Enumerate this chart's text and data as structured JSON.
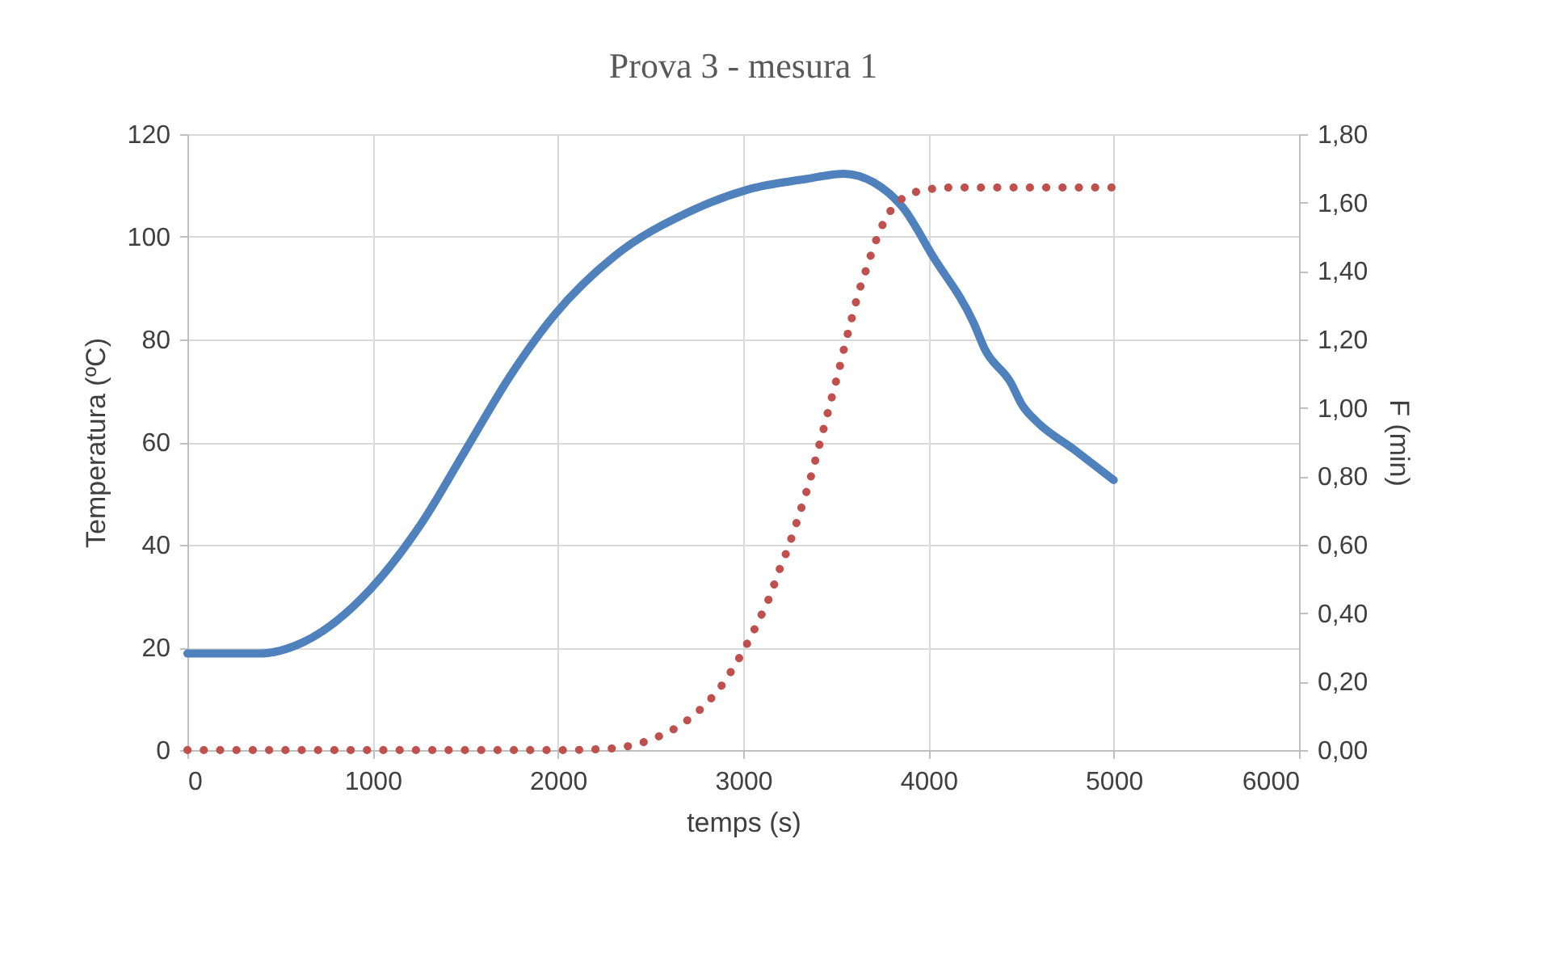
{
  "chart_data": {
    "type": "line",
    "title": "Prova 3 - mesura 1",
    "xlabel": "temps (s)",
    "ylabel": "Temperatura (ºC)",
    "y2label": "F (min)",
    "xlim": [
      0,
      6000
    ],
    "xticks": [
      0,
      1000,
      2000,
      3000,
      4000,
      5000,
      6000
    ],
    "ylim": [
      0,
      120
    ],
    "yticks": [
      0,
      20,
      40,
      60,
      80,
      100,
      120
    ],
    "y2lim": [
      0,
      1.8
    ],
    "y2ticks": [
      {
        "value": 0,
        "label": "0,00"
      },
      {
        "value": 0.2,
        "label": "0,20"
      },
      {
        "value": 0.4,
        "label": "0,40"
      },
      {
        "value": 0.6,
        "label": "0,60"
      },
      {
        "value": 0.8,
        "label": "0,80"
      },
      {
        "value": 1.0,
        "label": "1,00"
      },
      {
        "value": 1.2,
        "label": "1,20"
      },
      {
        "value": 1.4,
        "label": "1,40"
      },
      {
        "value": 1.6,
        "label": "1,60"
      },
      {
        "value": 1.8,
        "label": "1,80"
      }
    ],
    "grid": true,
    "legend": false,
    "series": [
      {
        "color": "#4f81bd",
        "line_style": "solid",
        "x": [
          0,
          384,
          624,
          984,
          1264,
          1504,
          1744,
          1984,
          2304,
          2704,
          3024,
          3344,
          3544,
          3704,
          3864,
          4024,
          4244,
          4304,
          4444,
          4504,
          4584,
          4784,
          5000
        ],
        "values": [
          18.8,
          18.8,
          21,
          31.2,
          44.2,
          58.6,
          73,
          84.9,
          96.2,
          104.8,
          109.2,
          111.3,
          112.3,
          110.6,
          105.6,
          96.2,
          83.2,
          78.1,
          71.6,
          67.3,
          64,
          58.6,
          52.6
        ]
      },
      {
        "color": "#c0504d",
        "line_style": "dotted",
        "axis": "y2",
        "x": [
          0,
          1984,
          2272,
          2408,
          2540,
          2664,
          2776,
          2872,
          2952,
          3020,
          3084,
          3144,
          3192,
          3244,
          3288,
          3332,
          3372,
          3408,
          3444,
          3480,
          3516,
          3548,
          3584,
          3620,
          3664,
          3708,
          3764,
          3852,
          3980,
          4124,
          5000
        ],
        "values": [
          0,
          0,
          0.004,
          0.015,
          0.039,
          0.074,
          0.123,
          0.18,
          0.245,
          0.31,
          0.379,
          0.45,
          0.522,
          0.594,
          0.665,
          0.739,
          0.812,
          0.886,
          0.96,
          1.035,
          1.109,
          1.182,
          1.258,
          1.332,
          1.405,
          1.477,
          1.548,
          1.609,
          1.637,
          1.644,
          1.644
        ]
      }
    ]
  }
}
